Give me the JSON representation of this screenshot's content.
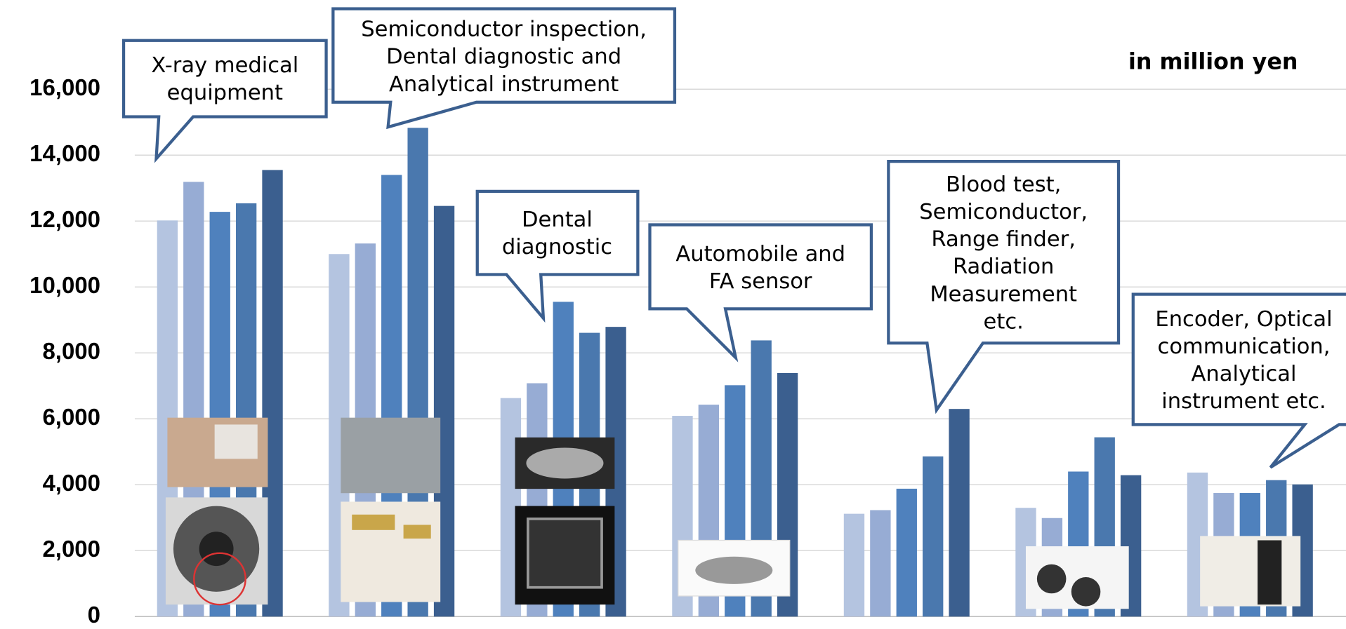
{
  "chart_data": {
    "type": "bar",
    "unit_label": "in million yen",
    "categories": [
      null,
      null,
      null,
      null,
      null,
      null,
      null
    ],
    "series": [
      {
        "color": "#b4c4e0",
        "values": [
          12020,
          11000,
          6630,
          6090,
          3120,
          3300,
          4370
        ]
      },
      {
        "color": "#97acd4",
        "values": [
          13190,
          11320,
          7080,
          6430,
          3230,
          2990,
          3750
        ]
      },
      {
        "color": "#4f81bd",
        "values": [
          12280,
          13400,
          9550,
          7020,
          3880,
          4400,
          3750
        ]
      },
      {
        "color": "#4a78ae",
        "values": [
          12540,
          14830,
          8610,
          8380,
          4860,
          5440,
          4140
        ]
      },
      {
        "color": "#3b5f8f",
        "values": [
          13550,
          12460,
          8790,
          7390,
          6300,
          4290,
          4010
        ]
      }
    ],
    "ylim": [
      0,
      18000
    ],
    "yticks": [
      0,
      {
        "value": 2000,
        "label": "2,000"
      },
      {
        "value": 4000,
        "label": "4,000"
      },
      {
        "value": 6000,
        "label": "6,000"
      },
      {
        "value": 8000,
        "label": "8,000"
      },
      {
        "value": 10000,
        "label": "10,000"
      },
      {
        "value": 12000,
        "label": "12,000"
      },
      {
        "value": 14000,
        "label": "14,000"
      },
      {
        "value": 16000,
        "label": "16,000"
      }
    ],
    "grid": true,
    "annotations": [
      [
        "X-ray medical",
        "equipment"
      ],
      [
        "Semiconductor inspection,",
        "Dental diagnostic and",
        "Analytical instrument"
      ],
      [
        "Dental",
        "diagnostic"
      ],
      [
        "Automobile and",
        "FA sensor"
      ],
      [
        "Blood test,",
        "Semiconductor,",
        "Range finder,",
        "Radiation",
        "Measurement",
        "etc."
      ],
      [
        "Encoder,  Optical",
        "communication,",
        "Analytical",
        "instrument etc."
      ]
    ]
  }
}
